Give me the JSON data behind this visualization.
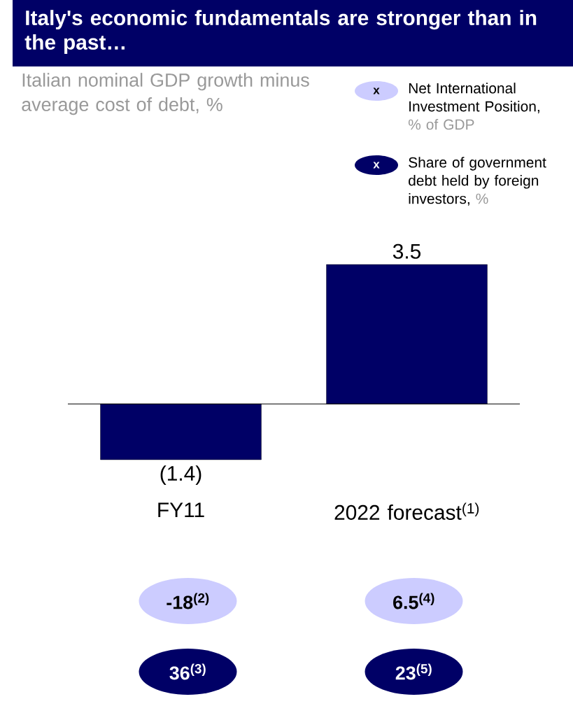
{
  "chart_data": {
    "type": "bar",
    "title": "Italy's economic fundamentals are stronger than in the past…",
    "subtitle": "Italian nominal GDP growth minus average cost of debt, %",
    "categories": [
      "FY11",
      "2022 forecast$^{(1)}$"
    ],
    "values": [
      -1.4,
      3.5
    ],
    "value_labels": [
      "(1.4)",
      "3.5"
    ],
    "color": "#000066",
    "annotations": [
      "x",
      "Net International Investment Position,",
      "% of GDP",
      "x",
      "Share of government debt held by foreign investors,",
      "%",
      "-18$^{(2)}$",
      "6.5$^{(4)}$",
      "36$^{(3)}$",
      "23$^{(5)}$"
    ]
  }
}
